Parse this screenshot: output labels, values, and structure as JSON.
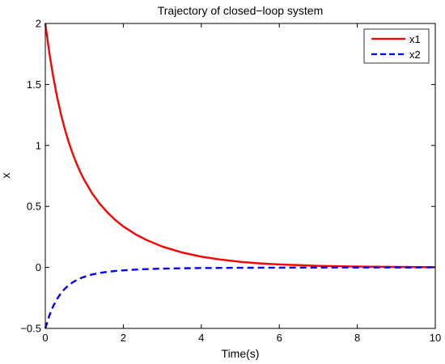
{
  "chart_data": {
    "type": "line",
    "title": "Trajectory of closed−loop system",
    "xlabel": "Time(s)",
    "ylabel": "x",
    "xlim": [
      0,
      10
    ],
    "ylim": [
      -0.5,
      2
    ],
    "xticks": [
      0,
      2,
      4,
      6,
      8,
      10
    ],
    "xtick_labels": [
      "0",
      "2",
      "4",
      "6",
      "8",
      "10"
    ],
    "yticks": [
      -0.5,
      0,
      0.5,
      1,
      1.5,
      2
    ],
    "ytick_labels": [
      "−0.5",
      "0",
      "0.5",
      "1",
      "1.5",
      "2"
    ],
    "grid": false,
    "legend_position": "top-right",
    "series": [
      {
        "name": "x1",
        "color": "#ff0000",
        "style": "solid",
        "x": [
          0,
          0.1,
          0.2,
          0.3,
          0.4,
          0.5,
          0.6,
          0.7,
          0.8,
          0.9,
          1.0,
          1.2,
          1.4,
          1.6,
          1.8,
          2.0,
          2.3,
          2.6,
          3.0,
          3.5,
          4.0,
          4.5,
          5.0,
          5.5,
          6.0,
          7.0,
          8.0,
          9.0,
          10.0
        ],
        "y": [
          2.0,
          1.765,
          1.568,
          1.4,
          1.257,
          1.134,
          1.027,
          0.934,
          0.852,
          0.78,
          0.716,
          0.607,
          0.52,
          0.448,
          0.387,
          0.336,
          0.274,
          0.224,
          0.171,
          0.123,
          0.088,
          0.064,
          0.046,
          0.033,
          0.024,
          0.013,
          0.007,
          0.004,
          0.002
        ]
      },
      {
        "name": "x2",
        "color": "#0000ff",
        "style": "dashed",
        "x": [
          0,
          0.1,
          0.2,
          0.3,
          0.4,
          0.5,
          0.6,
          0.7,
          0.8,
          0.9,
          1.0,
          1.2,
          1.4,
          1.6,
          1.8,
          2.0,
          2.3,
          2.6,
          3.0,
          3.5,
          4.0,
          4.5,
          5.0,
          6.0,
          7.0,
          8.0,
          9.0,
          10.0
        ],
        "y": [
          -0.5,
          -0.398,
          -0.319,
          -0.259,
          -0.212,
          -0.175,
          -0.146,
          -0.123,
          -0.104,
          -0.089,
          -0.077,
          -0.058,
          -0.045,
          -0.036,
          -0.029,
          -0.024,
          -0.018,
          -0.014,
          -0.01,
          -0.007,
          -0.005,
          -0.004,
          -0.003,
          -0.002,
          -0.001,
          -0.0005,
          -0.0002,
          0.0
        ]
      }
    ]
  }
}
